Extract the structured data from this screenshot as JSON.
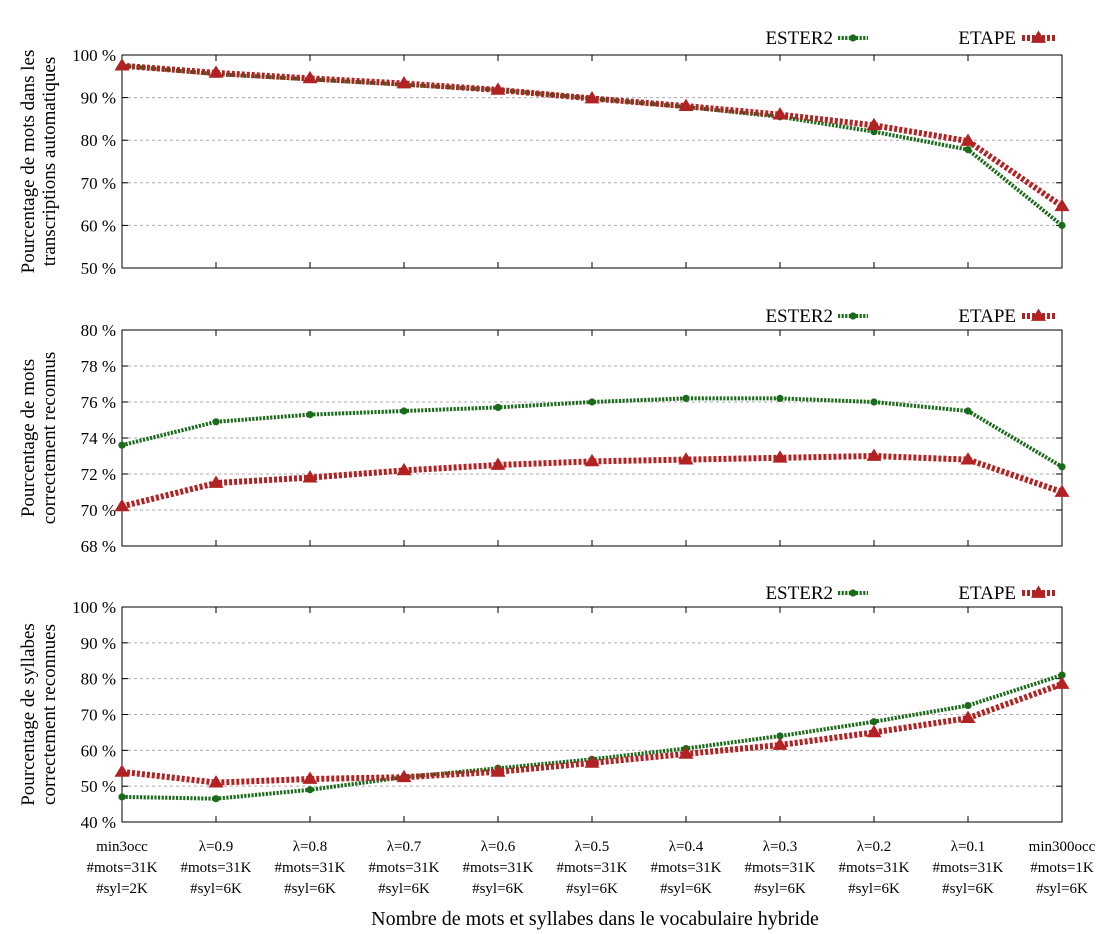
{
  "chart_data": [
    {
      "type": "line",
      "ylabel": [
        "Pourcentage de mots dans les",
        "transcriptions automatiques"
      ],
      "ylim": [
        50,
        100
      ],
      "yticks": [
        50,
        60,
        70,
        80,
        90,
        100
      ],
      "ytick_labels": [
        "50 %",
        "60 %",
        "70 %",
        "80 %",
        "90 %",
        "100 %"
      ],
      "grid": "horizontal-dashed",
      "legend": "top-right",
      "series": [
        {
          "name": "ESTER2",
          "color": "#1a6b1a",
          "marker": "circle",
          "values": [
            97.5,
            95.5,
            94.3,
            93.0,
            91.8,
            89.8,
            87.8,
            85.5,
            82.0,
            77.8,
            60.0
          ]
        },
        {
          "name": "ETAPE",
          "color": "#b22222",
          "marker": "triangle",
          "values": [
            97.5,
            95.8,
            94.5,
            93.3,
            91.8,
            89.8,
            88.0,
            86.0,
            83.5,
            79.8,
            64.5
          ]
        }
      ]
    },
    {
      "type": "line",
      "ylabel": [
        "Pourcentage de mots",
        "correctement reconnus"
      ],
      "ylim": [
        68,
        80
      ],
      "yticks": [
        68,
        70,
        72,
        74,
        76,
        78,
        80
      ],
      "ytick_labels": [
        "68 %",
        "70 %",
        "72 %",
        "74 %",
        "76 %",
        "78 %",
        "80 %"
      ],
      "grid": "horizontal-dashed",
      "legend": "top-right",
      "series": [
        {
          "name": "ESTER2",
          "color": "#1a6b1a",
          "marker": "circle",
          "values": [
            73.6,
            74.9,
            75.3,
            75.5,
            75.7,
            76.0,
            76.2,
            76.2,
            76.0,
            75.5,
            72.4
          ]
        },
        {
          "name": "ETAPE",
          "color": "#b22222",
          "marker": "triangle",
          "values": [
            70.2,
            71.5,
            71.8,
            72.2,
            72.5,
            72.7,
            72.8,
            72.9,
            73.0,
            72.8,
            71.0
          ]
        }
      ]
    },
    {
      "type": "line",
      "ylabel": [
        "Pourcentage de syllabes",
        "correctement reconnues"
      ],
      "ylim": [
        40,
        100
      ],
      "yticks": [
        40,
        50,
        60,
        70,
        80,
        90,
        100
      ],
      "ytick_labels": [
        "40 %",
        "50 %",
        "60 %",
        "70 %",
        "80 %",
        "90 %",
        "100 %"
      ],
      "grid": "horizontal-dashed",
      "legend": "top-right",
      "series": [
        {
          "name": "ESTER2",
          "color": "#1a6b1a",
          "marker": "circle",
          "values": [
            47.0,
            46.5,
            49.0,
            52.5,
            55.0,
            57.5,
            60.5,
            64.0,
            68.0,
            72.5,
            81.0
          ]
        },
        {
          "name": "ETAPE",
          "color": "#b22222",
          "marker": "triangle",
          "values": [
            54.0,
            51.0,
            52.0,
            52.5,
            54.0,
            56.5,
            59.0,
            61.5,
            65.0,
            69.0,
            78.5
          ]
        }
      ]
    }
  ],
  "x_categories": [
    [
      "min3occ",
      "#mots=31K",
      "#syl=2K"
    ],
    [
      "λ=0.9",
      "#mots=31K",
      "#syl=6K"
    ],
    [
      "λ=0.8",
      "#mots=31K",
      "#syl=6K"
    ],
    [
      "λ=0.7",
      "#mots=31K",
      "#syl=6K"
    ],
    [
      "λ=0.6",
      "#mots=31K",
      "#syl=6K"
    ],
    [
      "λ=0.5",
      "#mots=31K",
      "#syl=6K"
    ],
    [
      "λ=0.4",
      "#mots=31K",
      "#syl=6K"
    ],
    [
      "λ=0.3",
      "#mots=31K",
      "#syl=6K"
    ],
    [
      "λ=0.2",
      "#mots=31K",
      "#syl=6K"
    ],
    [
      "λ=0.1",
      "#mots=31K",
      "#syl=6K"
    ],
    [
      "min300occ",
      "#mots=1K",
      "#syl=6K"
    ]
  ],
  "xlabel": "Nombre de mots et syllabes dans le vocabulaire hybride"
}
